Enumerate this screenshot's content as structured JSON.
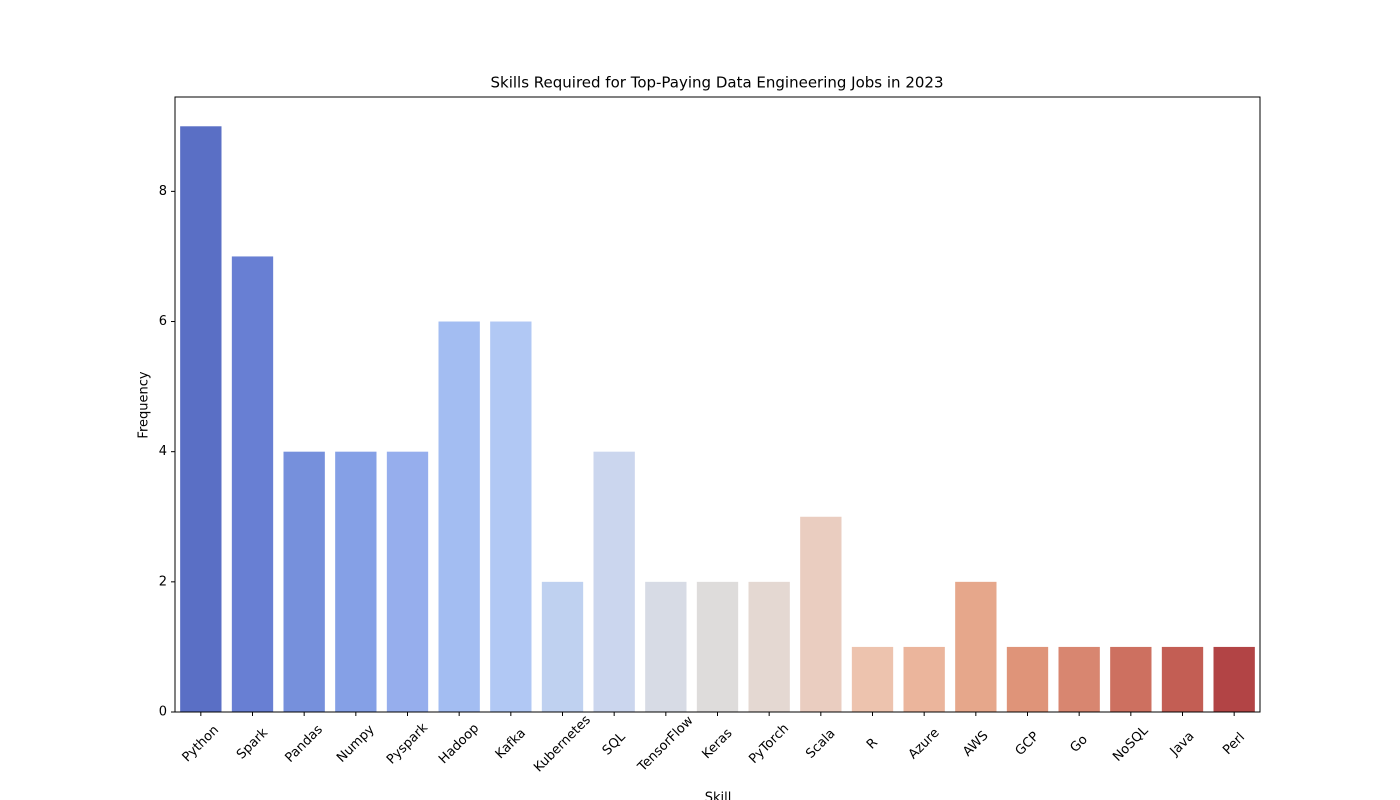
{
  "chart_data": {
    "type": "bar",
    "title": "Skills Required for Top-Paying Data Engineering Jobs in 2023",
    "x_label": "Skill",
    "y_label": "Frequency",
    "categories": [
      "Python",
      "Spark",
      "Pandas",
      "Numpy",
      "Pyspark",
      "Hadoop",
      "Kafka",
      "Kubernetes",
      "SQL",
      "TensorFlow",
      "Keras",
      "PyTorch",
      "Scala",
      "R",
      "Azure",
      "AWS",
      "GCP",
      "Go",
      "NoSQL",
      "Java",
      "Perl"
    ],
    "values": [
      9,
      7,
      4,
      4,
      4,
      6,
      6,
      2,
      4,
      2,
      2,
      2,
      3,
      1,
      1,
      2,
      1,
      1,
      1,
      1,
      1
    ],
    "colors": [
      "#5a6fc5",
      "#687fd3",
      "#7690dc",
      "#85a0e6",
      "#96aeed",
      "#a3bdf2",
      "#b1c8f4",
      "#bfd1f0",
      "#cbd6ee",
      "#d7dbe5",
      "#dedcdb",
      "#e4d8d2",
      "#eacdc0",
      "#edc3ae",
      "#ebb59c",
      "#e6a78b",
      "#df9479",
      "#d88670",
      "#cd7060",
      "#c35e54",
      "#b24445"
    ],
    "ylim": [
      0,
      9.45
    ],
    "yticks": [
      0,
      2,
      4,
      6,
      8
    ],
    "grid": false
  }
}
